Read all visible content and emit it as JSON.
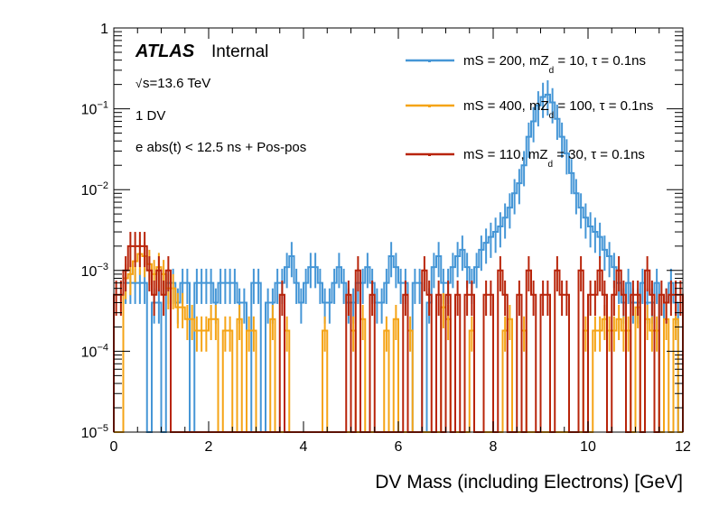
{
  "chart_data": {
    "type": "histogram-step",
    "title": "",
    "xlabel": "DV Mass (including Electrons) [GeV]",
    "ylabel": "",
    "xlim": [
      0,
      12
    ],
    "ylim": [
      1e-05,
      1
    ],
    "yscale": "log",
    "grid": false,
    "legend_position": "top-right",
    "bin_width": 0.1,
    "x_ticks": [
      0,
      2,
      4,
      6,
      8,
      10,
      12
    ],
    "x_tick_labels": [
      "0",
      "2",
      "4",
      "6",
      "8",
      "10",
      "12"
    ],
    "y_ticks": [
      1e-05,
      0.0001,
      0.001,
      0.01,
      0.1,
      1
    ],
    "y_tick_labels": [
      {
        "base": "10",
        "exp": "−5"
      },
      {
        "base": "10",
        "exp": "−4"
      },
      {
        "base": "10",
        "exp": "−3"
      },
      {
        "base": "10",
        "exp": "−2"
      },
      {
        "base": "10",
        "exp": "−1"
      },
      {
        "base": "1",
        "exp": ""
      }
    ],
    "annotations": {
      "atlas": "ATLAS",
      "atlas_status": "Internal",
      "energy_sqrt": "√",
      "energy_rest": "s=13.6 TeV",
      "region": "1 DV",
      "selection": "e abs(t) < 12.5 ns + Pos-pos"
    },
    "series": [
      {
        "name": "mS = 200, mZ_d = 10, τ = 0.1ns",
        "label_pre": "mS = 200, mZ",
        "label_sub": "d",
        "label_post": " = 10, τ = 0.1ns",
        "color": "#4596d6",
        "values": [
          0,
          0,
          0.0007,
          0.0007,
          0.0007,
          0.0007,
          0.0007,
          0,
          0.0004,
          0.0004,
          0,
          0.0007,
          0.0007,
          0.0004,
          0.0007,
          0.0007,
          0,
          0.0007,
          0.0007,
          0.0007,
          0.0007,
          0.0004,
          0.0007,
          0.0007,
          0.0007,
          0.0007,
          0.0004,
          0.0004,
          0,
          0.0007,
          0.0007,
          0,
          0.0004,
          0.0004,
          0.0007,
          0.0007,
          0.0011,
          0.0015,
          0.0007,
          0.0004,
          0.0007,
          0.0011,
          0.0011,
          0.0007,
          0.0004,
          0.0004,
          0.0007,
          0.0011,
          0.0007,
          0.0004,
          0.0004,
          0.0007,
          0.0007,
          0.0011,
          0.0007,
          0.0004,
          0.0004,
          0.0007,
          0.0015,
          0.0011,
          0.0007,
          0.0007,
          0,
          0.0007,
          0.0007,
          0,
          0.0004,
          0.0011,
          0.0015,
          0.0007,
          0.0007,
          0.0011,
          0.0015,
          0.0018,
          0.0011,
          0.0007,
          0.0011,
          0.0018,
          0.0022,
          0.0026,
          0.003,
          0.0035,
          0.0045,
          0.006,
          0.009,
          0.012,
          0.02,
          0.045,
          0.07,
          0.11,
          0.14,
          0.15,
          0.12,
          0.075,
          0.045,
          0.028,
          0.016,
          0.009,
          0.006,
          0.0045,
          0.0035,
          0.003,
          0.0026,
          0.0018,
          0.0015,
          0.0011,
          0.0007,
          0.0004,
          0.0007,
          0.0004,
          0.0004,
          0.0007,
          0.0004,
          0.0004,
          0.0007,
          0,
          0.0004,
          0.0007,
          0.0004,
          0
        ]
      },
      {
        "name": "mS = 400, mZ_d = 100, τ = 0.1ns",
        "label_pre": "mS = 400, mZ",
        "label_sub": "d",
        "label_post": " = 100, τ = 0.1ns",
        "color": "#f5a416",
        "values": [
          0,
          0,
          0.0008,
          0.0009,
          0.0013,
          0.0016,
          0.0015,
          0.0012,
          0.0009,
          0.0011,
          0.0009,
          0.0006,
          0.0006,
          0.00035,
          0.00035,
          0.00025,
          0.00025,
          0.00018,
          0.00018,
          0.00018,
          0.00025,
          0.00025,
          0,
          0.00018,
          0.00018,
          0,
          0.00025,
          0,
          0.00018,
          0.00018,
          0,
          0,
          0,
          0.00025,
          0,
          0,
          0.00018,
          0,
          0,
          0,
          0,
          0,
          0,
          0,
          0.00018,
          0,
          0,
          0,
          0,
          0,
          0.00018,
          0,
          0.00025,
          0,
          0,
          0,
          0,
          0.00018,
          0,
          0.00025,
          0,
          0,
          0.00018,
          0,
          0,
          0,
          0,
          0,
          0,
          0.00035,
          0.00025,
          0,
          0,
          0,
          0,
          0.00018,
          0,
          0,
          0,
          0,
          0,
          0,
          0.00018,
          0.00025,
          0,
          0,
          0.00018,
          0,
          0,
          0,
          0,
          0,
          0,
          0,
          0,
          0,
          0,
          0,
          0,
          0.00018,
          0,
          0.00018,
          0.00018,
          0.00025,
          0.00018,
          0.00018,
          0.00025,
          0.00018,
          0.00018,
          0,
          0.00035,
          0,
          0.00025,
          0.00018,
          0.00018,
          0,
          0.00025,
          0,
          0.00025,
          0
        ]
      },
      {
        "name": "mS = 110, mZ_d = 30, τ = 0.1ns",
        "label_pre": "mS = 110, mZ",
        "label_sub": "d",
        "label_post": " = 30, τ = 0.1ns",
        "color": "#b8240a",
        "values": [
          0.0005,
          0.0005,
          0.001,
          0.002,
          0.002,
          0.002,
          0.002,
          0.001,
          0.0005,
          0.001,
          0.0005,
          0.001,
          0,
          0,
          0,
          0,
          0,
          0,
          0,
          0,
          0,
          0,
          0,
          0,
          0,
          0,
          0,
          0,
          0,
          0,
          0,
          0,
          0,
          0,
          0,
          0.0005,
          0,
          0,
          0,
          0,
          0,
          0,
          0,
          0,
          0,
          0,
          0,
          0,
          0,
          0.0005,
          0,
          0.001,
          0,
          0,
          0.0005,
          0,
          0,
          0,
          0,
          0,
          0,
          0.0005,
          0,
          0,
          0,
          0.001,
          0.0005,
          0,
          0.0005,
          0,
          0.0005,
          0,
          0.0005,
          0,
          0.0005,
          0.0005,
          0,
          0,
          0.0005,
          0.0005,
          0,
          0.001,
          0.0005,
          0,
          0,
          0.0005,
          0,
          0.001,
          0.0005,
          0,
          0.0005,
          0.0005,
          0,
          0.001,
          0.0005,
          0.0005,
          0,
          0,
          0.001,
          0,
          0.0005,
          0.0005,
          0.001,
          0.0005,
          0,
          0.0005,
          0.001,
          0.0005,
          0,
          0.0005,
          0.0005,
          0,
          0.001,
          0.0005,
          0,
          0.0005,
          0.0004,
          0.0005,
          0.0005,
          0.0005
        ]
      }
    ]
  }
}
